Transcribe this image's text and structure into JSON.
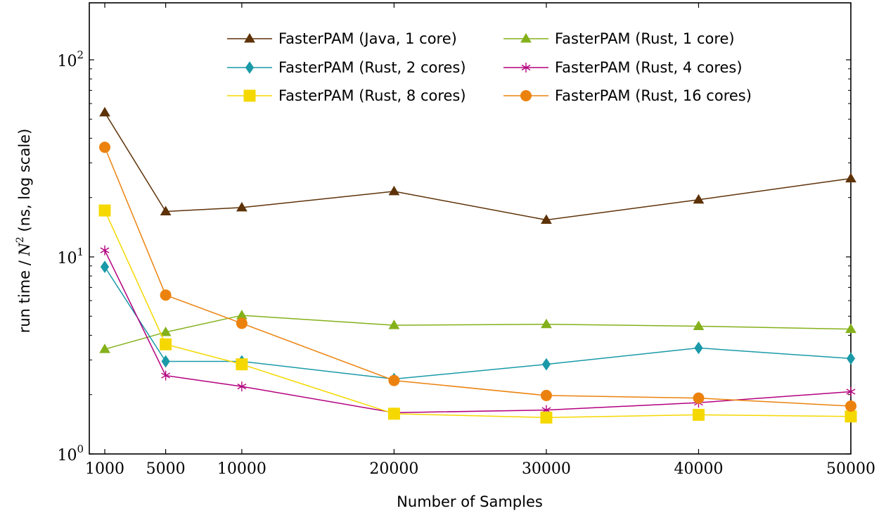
{
  "chart_data": {
    "type": "line",
    "title": "",
    "xlabel": "Number of Samples",
    "ylabel": "run time / N² (ns, log scale)",
    "y_scale": "log",
    "ylim": [
      1,
      200
    ],
    "xlim": [
      0,
      50000
    ],
    "x": [
      1000,
      5000,
      10000,
      20000,
      30000,
      40000,
      50000
    ],
    "x_tick_labels": [
      "1000",
      "5000",
      "10000",
      "20000",
      "30000",
      "40000",
      "50000"
    ],
    "y_ticks": [
      {
        "value": 1,
        "label": "10",
        "exp": "0"
      },
      {
        "value": 10,
        "label": "10",
        "exp": "1"
      },
      {
        "value": 100,
        "label": "10",
        "exp": "2"
      }
    ],
    "grid": false,
    "legend_position": "top",
    "series": [
      {
        "name": "FasterPAM (Java, 1 core)",
        "color": "#5e3208",
        "marker": "triangle",
        "values": [
          54,
          17,
          17.8,
          21.5,
          15.4,
          19.5,
          25
        ]
      },
      {
        "name": "FasterPAM (Rust, 1 core)",
        "color": "#84b11a",
        "marker": "triangle",
        "values": [
          3.4,
          4.15,
          5.05,
          4.5,
          4.55,
          4.45,
          4.3
        ]
      },
      {
        "name": "FasterPAM (Rust, 2 cores)",
        "color": "#1a99a8",
        "marker": "diamond",
        "values": [
          8.9,
          2.95,
          2.95,
          2.4,
          2.85,
          3.45,
          3.05
        ]
      },
      {
        "name": "FasterPAM (Rust, 4 cores)",
        "color": "#b3007e",
        "marker": "star",
        "values": [
          10.8,
          2.5,
          2.2,
          1.62,
          1.67,
          1.82,
          2.07
        ]
      },
      {
        "name": "FasterPAM (Rust, 8 cores)",
        "color": "#f5d800",
        "marker": "square",
        "values": [
          17.2,
          3.6,
          2.85,
          1.6,
          1.53,
          1.58,
          1.55
        ]
      },
      {
        "name": "FasterPAM (Rust, 16 cores)",
        "color": "#ec820e",
        "marker": "circle",
        "values": [
          36,
          6.4,
          4.6,
          2.36,
          1.98,
          1.92,
          1.75
        ]
      }
    ]
  }
}
